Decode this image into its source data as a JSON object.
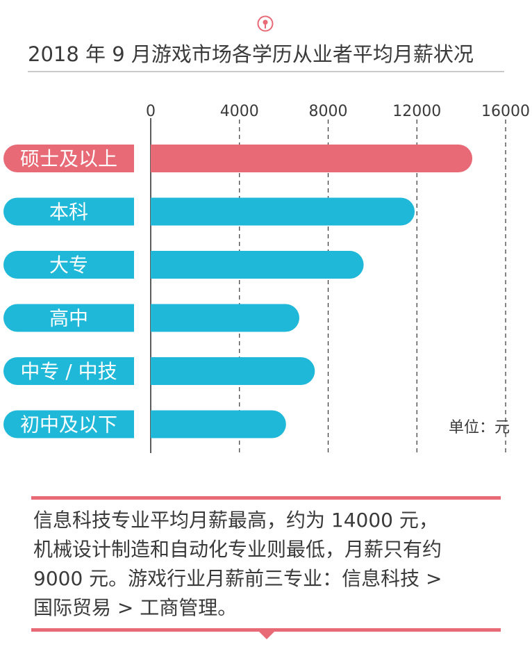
{
  "header": {
    "title": "2018 年 9 月游戏市场各学历从业者平均月薪状况"
  },
  "colors": {
    "highlight": "#e86a76",
    "bar": "#1fb8d8",
    "axis": "#3a3a3a"
  },
  "chart_data": {
    "type": "bar",
    "orientation": "horizontal",
    "title": "2018 年 9 月游戏市场各学历从业者平均月薪状况",
    "categories": [
      "硕士及以上",
      "本科",
      "大专",
      "高中",
      "中专 / 中技",
      "初中及以下"
    ],
    "values": [
      14500,
      11900,
      9600,
      6700,
      7400,
      6100
    ],
    "highlight_index": 0,
    "x_ticks": [
      0,
      4000,
      8000,
      12000,
      16000
    ],
    "tick_labels": [
      "0",
      "4000",
      "8000",
      "12000",
      "16000"
    ],
    "xlim": [
      0,
      16000
    ],
    "grid": "dashed-vertical",
    "unit_label": "单位：元"
  },
  "note": {
    "text": "信息科技专业平均月薪最高，约为 14000 元，\n机械设计制造和自动化专业则最低，月薪只有约\n9000 元。游戏行业月薪前三专业：信息科技 >\n国际贸易 > 工商管理。"
  }
}
